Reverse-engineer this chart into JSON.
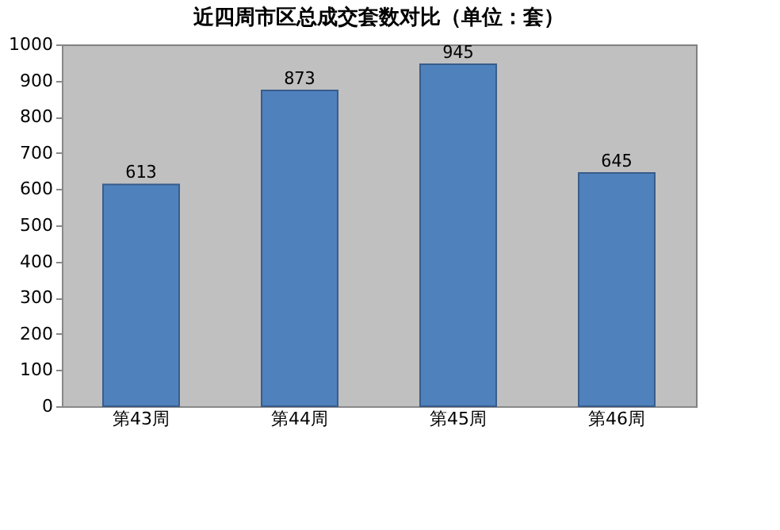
{
  "chart_data": {
    "type": "bar",
    "title": "近四周市区总成交套数对比（单位：套）",
    "categories": [
      "第43周",
      "第44周",
      "第45周",
      "第46周"
    ],
    "values": [
      613,
      873,
      945,
      645
    ],
    "color": "#4f81bd",
    "ylim": [
      0,
      1000
    ],
    "yticks": [
      0,
      100,
      200,
      300,
      400,
      500,
      600,
      700,
      800,
      900,
      1000
    ],
    "grid": false,
    "data_labels": true
  }
}
